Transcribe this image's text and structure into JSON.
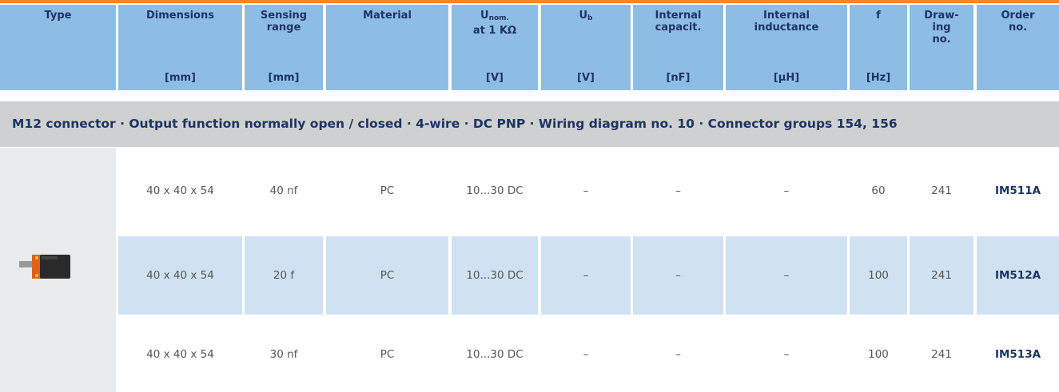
{
  "header": {
    "columns": [
      {
        "lines": [
          "Type"
        ]
      },
      {
        "lines": [
          "Dimensions"
        ],
        "unit": "[mm]"
      },
      {
        "lines": [
          "Sensing",
          "range"
        ],
        "unit": "[mm]"
      },
      {
        "lines": [
          "Material"
        ]
      },
      {
        "lines": [
          "U",
          "at 1 KΩ"
        ],
        "sub": "nom.",
        "unit": "[V]"
      },
      {
        "lines": [
          "U"
        ],
        "sub": "b",
        "unit": "[V]"
      },
      {
        "lines": [
          "Internal",
          "capacit."
        ],
        "unit": "[nF]"
      },
      {
        "lines": [
          "Internal",
          "inductance"
        ],
        "unit": "[µH]"
      },
      {
        "lines": [
          "f"
        ],
        "unit": "[Hz]"
      },
      {
        "lines": [
          "Draw-",
          "ing",
          "no."
        ]
      },
      {
        "lines": [
          "Order",
          "no."
        ]
      }
    ]
  },
  "section": "M12 connector · Output function normally open / closed · 4-wire · DC PNP · Wiring diagram no. 10 · Connector groups 154, 156",
  "rows": [
    [
      "40 x 40 x 54",
      "40 nf",
      "PC",
      "10...30 DC",
      "–",
      "–",
      "–",
      "60",
      "241",
      "IM511A"
    ],
    [
      "40 x 40 x 54",
      "20 f",
      "PC",
      "10...30 DC",
      "–",
      "–",
      "–",
      "100",
      "241",
      "IM512A"
    ],
    [
      "40 x 40 x 54",
      "30 nf",
      "PC",
      "10...30 DC",
      "–",
      "–",
      "–",
      "100",
      "241",
      "IM513A"
    ]
  ]
}
